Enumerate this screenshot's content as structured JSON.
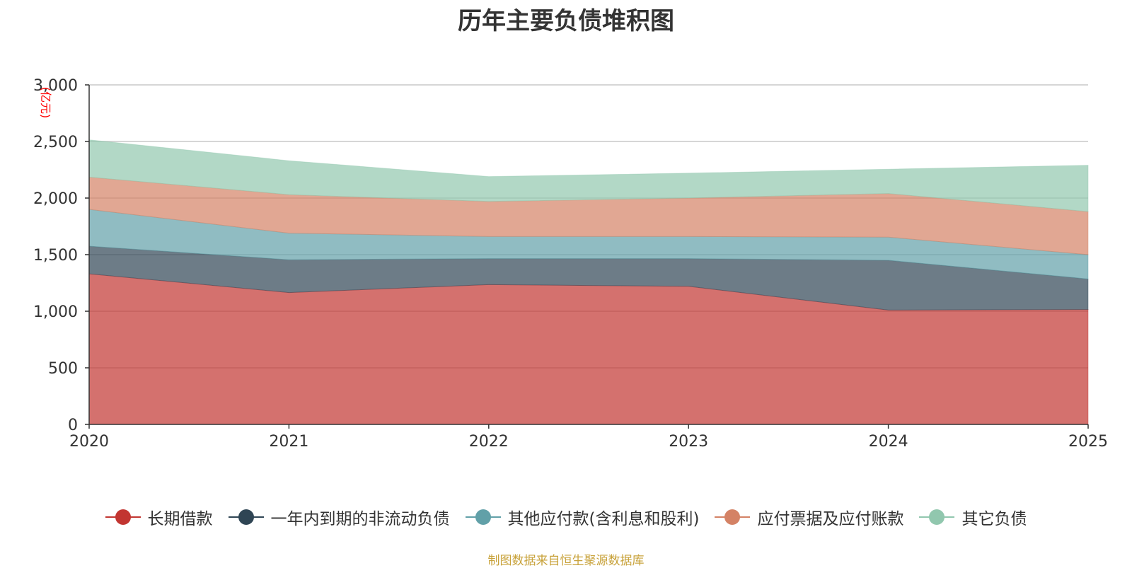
{
  "chart_data": {
    "type": "area",
    "stacked": true,
    "title": "历年主要负债堆积图",
    "ylabel": "(亿元)",
    "xlabel": "",
    "x": [
      "2020",
      "2021",
      "2022",
      "2023",
      "2024",
      "2025"
    ],
    "ylim": [
      0,
      3000
    ],
    "yticks": [
      0,
      500,
      1000,
      1500,
      2000,
      2500,
      3000
    ],
    "ytick_labels": [
      "0",
      "500",
      "1,000",
      "1,500",
      "2,000",
      "2,500",
      "3,000"
    ],
    "grid": true,
    "legend_position": "bottom",
    "series": [
      {
        "name": "长期借款",
        "color": "#c23531",
        "values": [
          1330,
          1165,
          1235,
          1220,
          1010,
          1015
        ]
      },
      {
        "name": "一年内到期的非流动负债",
        "color": "#2f4554",
        "values": [
          245,
          290,
          230,
          245,
          440,
          270
        ]
      },
      {
        "name": "其他应付款(含利息和股利)",
        "color": "#61a0a8",
        "values": [
          325,
          235,
          195,
          195,
          205,
          215
        ]
      },
      {
        "name": "应付票据及应付账款",
        "color": "#d48265",
        "values": [
          285,
          340,
          310,
          340,
          385,
          380
        ]
      },
      {
        "name": "其它负债",
        "color": "#91c7ae",
        "values": [
          330,
          300,
          220,
          220,
          215,
          410
        ]
      }
    ],
    "source_note": "制图数据来自恒生聚源数据库"
  }
}
